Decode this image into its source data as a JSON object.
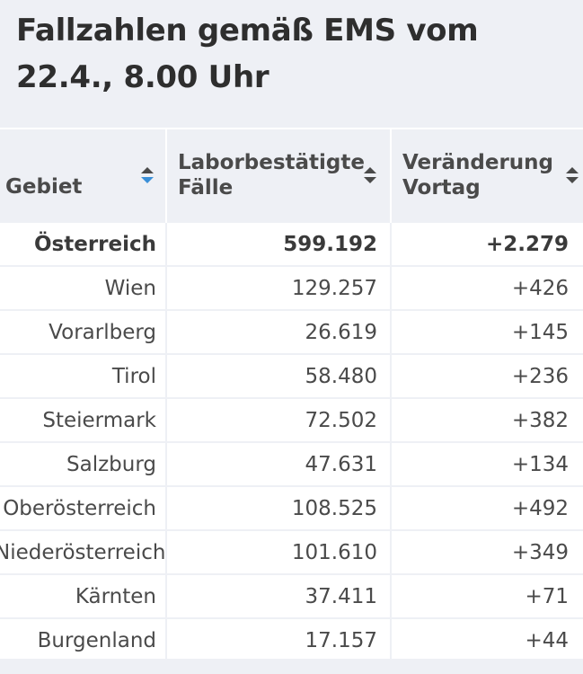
{
  "title": "Fallzahlen gemäß EMS vom 22.4., 8.00 Uhr",
  "colors": {
    "background": "#eef0f5",
    "table_background": "#ffffff",
    "text": "#4a4a4a",
    "sort_active": "#3a8fd8",
    "sort_inactive": "#4a4a4a"
  },
  "chart_data": {
    "type": "table",
    "title": "Fallzahlen gemäß EMS vom 22.4., 8.00 Uhr",
    "columns": [
      {
        "key": "gebiet",
        "label": "Gebiet",
        "sort_icon": "sort-icon-descending-active"
      },
      {
        "key": "faelle",
        "label": "Laborbestätigte Fälle",
        "sort_icon": "sort-icon"
      },
      {
        "key": "veraenderung",
        "label": "Veränderung Vortag",
        "sort_icon": "sort-icon"
      }
    ],
    "rows": [
      {
        "gebiet": "Österreich",
        "faelle": "599.192",
        "veraenderung": "+2.279",
        "total": true
      },
      {
        "gebiet": "Wien",
        "faelle": "129.257",
        "veraenderung": "+426"
      },
      {
        "gebiet": "Vorarlberg",
        "faelle": "26.619",
        "veraenderung": "+145"
      },
      {
        "gebiet": "Tirol",
        "faelle": "58.480",
        "veraenderung": "+236"
      },
      {
        "gebiet": "Steiermark",
        "faelle": "72.502",
        "veraenderung": "+382"
      },
      {
        "gebiet": "Salzburg",
        "faelle": "47.631",
        "veraenderung": "+134"
      },
      {
        "gebiet": "Oberösterreich",
        "faelle": "108.525",
        "veraenderung": "+492"
      },
      {
        "gebiet": "Niederösterreich",
        "faelle": "101.610",
        "veraenderung": "+349"
      },
      {
        "gebiet": "Kärnten",
        "faelle": "37.411",
        "veraenderung": "+71"
      },
      {
        "gebiet": "Burgenland",
        "faelle": "17.157",
        "veraenderung": "+44"
      }
    ]
  }
}
